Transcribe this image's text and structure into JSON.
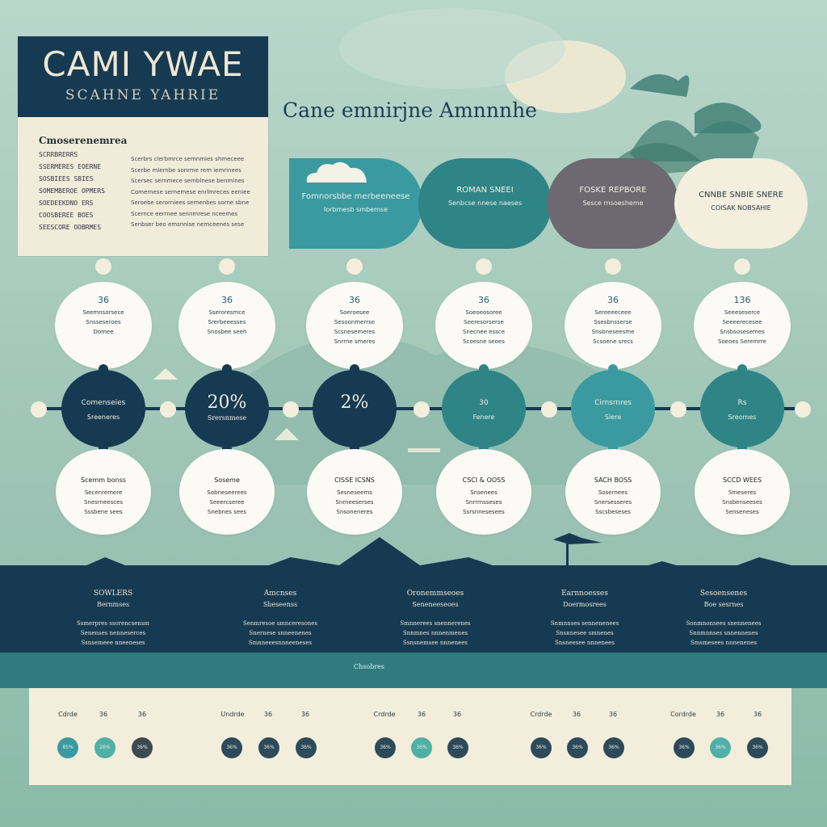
{
  "colors": {
    "navy": "#163a52",
    "teal": "#3a9aa0",
    "deep_teal": "#2f8486",
    "gray": "#6e6870",
    "cream": "#f1ecd9",
    "mint": "#9cc3b5"
  },
  "title_card": {
    "title": "CAMI YWAE",
    "subtitle": "SCAHNE YAHRIE",
    "heading": "Cmoserenemrea",
    "list": [
      "SCRRBRERRS",
      "SSERMERES EOERNE",
      "SOSBIEES SBIES",
      "SOMEMBEROE OPMERS",
      "SOEDEEKDNO ERS",
      "COOSBEREE BOES",
      "SEESCORE OOBRMES"
    ],
    "paragraph": [
      "Scerbrs clerbmrce semnmies shmeceee",
      "Scerbe mlernbe sonrme rem iemrinees",
      "Scersec sernmece semblnese benmines",
      "Comernese sernemese enrlmreces eeniee",
      "Seroebe serorniees semenbes sorne sbne",
      "Scernce eerrnee sennmrese nceemes",
      "Senbser beo emsnnise nemceenes sese"
    ]
  },
  "headline": "Cane emnirjne Amnnnhe",
  "top_lobes": [
    {
      "t1": "Fomnorsbbe merbeeneese",
      "t2": "Iorbmesb smbemse"
    },
    {
      "t1": "ROMAN SNEEI",
      "t2": "Senbcse nnese naeses"
    },
    {
      "t1": "FOSKE REPBORE",
      "t2": "Sesce rnsoesheme"
    },
    {
      "t1": "CNNBE SNBIE SNERE",
      "t2": "COISAK NOBSAHIE"
    }
  ],
  "info_circles": [
    {
      "n": "36",
      "l": [
        "Seemnsorsece",
        "Snsseseroes",
        "Domee"
      ]
    },
    {
      "n": "36",
      "l": [
        "Sseroresmce",
        "Srerbeeesses",
        "Snosbee seeh"
      ]
    },
    {
      "n": "36",
      "l": [
        "Soeroesee",
        "Sesoonmerrse",
        "Scsnesemeres",
        "Snrrne smeres"
      ]
    },
    {
      "n": "36",
      "l": [
        "Soeoeosoree",
        "Seeresorserse",
        "Snecnee essce",
        "Scoesne seoes"
      ]
    },
    {
      "n": "36",
      "l": [
        "Sereeeeceee",
        "Ssesbnsserse",
        "Snsbneseesme",
        "Scsoene srecs"
      ]
    },
    {
      "n": "136",
      "l": [
        "Seeeseserce",
        "Seeeerecesee",
        "Snsbsosesemes",
        "Soeoes Seremrre"
      ]
    }
  ],
  "mid_circles": [
    {
      "a": "Comenseies",
      "b": "Sreeneres"
    },
    {
      "a": "20%",
      "b": "Srersnmese"
    },
    {
      "a": "2%",
      "b": ""
    },
    {
      "a": "30",
      "b": "Fenere"
    },
    {
      "a": "Cirnsrnres",
      "b": "Siere"
    },
    {
      "a": "Rs",
      "b": "Sreomes"
    }
  ],
  "low_circles": [
    {
      "h": "Scemm bonss",
      "l": [
        "Secenremere",
        "Snesrneesces",
        "Sssbene sees"
      ]
    },
    {
      "h": "Soseme",
      "l": [
        "Sobneseerees",
        "Seeercseree",
        "Snebnes sees"
      ]
    },
    {
      "h": "CISSE ICSNS",
      "l": [
        "Sesneseems",
        "Snrneeserses",
        "Snsoneneres"
      ]
    },
    {
      "h": "CSCI & OOSS",
      "l": [
        "Snsenees",
        "Snrrrnsseses",
        "Ssrsnnesesees"
      ]
    },
    {
      "h": "SACH BOSS",
      "l": [
        "Sosernees",
        "Snersesseres",
        "Sscsbeseses"
      ]
    },
    {
      "h": "SCCD WEES",
      "l": [
        "Smeseres",
        "Snsbenseeses",
        "Senseneses"
      ]
    }
  ],
  "columns": [
    {
      "h1": "SOWLERS",
      "h2": "Bernmses",
      "l": [
        "Ssmerpres ssorencsensm",
        "Senenses nenneserces",
        "Ssnsemeee nneeneses"
      ]
    },
    {
      "h1": "Amcnses",
      "h2": "Sbeseenss",
      "l": [
        "Senmresoe smnceresones",
        "Snernese snneenenes",
        "Smnneeesnnneeneses"
      ]
    },
    {
      "h1": "Oronemmseoes",
      "h2": "Seneneeseoes",
      "l": [
        "Smnnerees snennerenes",
        "Snnmnes nnnenmenes",
        "Ssnsnemsee nnnenees"
      ]
    },
    {
      "h1": "Earnnoesses",
      "h2": "Doermosrees",
      "l": [
        "Snmnnses sennenenees",
        "Snsnnesee smnenes",
        "Snsneesee nnnenees"
      ]
    },
    {
      "h1": "Sesoensenes",
      "h2": "Boe sesrnes",
      "l": [
        "Sonmnonsees snennenees",
        "Snnmnnses snnennenes",
        "Smsmesees nnnenenes"
      ]
    }
  ],
  "footer_label": "Chsobres",
  "bottom_groups": [
    {
      "labels": [
        "Cdrde",
        "36",
        "36"
      ],
      "dots": [
        "85%",
        "26%",
        "36%"
      ]
    },
    {
      "labels": [
        "Undrde",
        "36",
        "36"
      ],
      "dots": [
        "36%",
        "36%",
        "36%"
      ]
    },
    {
      "labels": [
        "Crdrde",
        "36",
        "36"
      ],
      "dots": [
        "36%",
        "36%",
        "36%"
      ]
    },
    {
      "labels": [
        "Crdrde",
        "36",
        "36"
      ],
      "dots": [
        "36%",
        "36%",
        "36%"
      ]
    },
    {
      "labels": [
        "Cordrde",
        "36",
        "36"
      ],
      "dots": [
        "36%",
        "36%",
        "36%"
      ]
    }
  ]
}
